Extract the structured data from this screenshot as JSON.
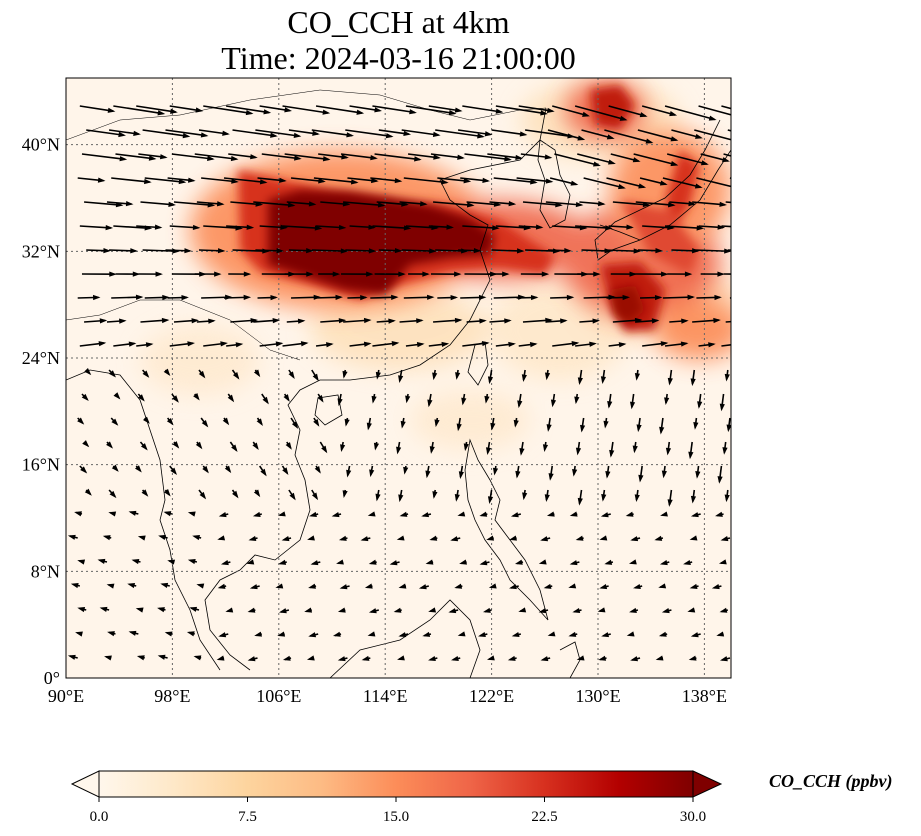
{
  "title_line1": "CO_CCH at 4km",
  "title_line2": "Time: 2024-03-16 21:00:00",
  "map": {
    "lon_range": [
      90,
      140
    ],
    "lat_range": [
      0,
      45
    ],
    "lon_ticks": [
      90,
      98,
      106,
      114,
      122,
      130,
      138
    ],
    "lat_ticks": [
      0,
      8,
      16,
      24,
      32,
      40
    ],
    "lon_tick_labels": [
      "90°E",
      "98°E",
      "106°E",
      "114°E",
      "122°E",
      "130°E",
      "138°E"
    ],
    "lat_tick_labels": [
      "0°",
      "8°N",
      "16°N",
      "24°N",
      "32°N",
      "40°N"
    ],
    "gridlines": "dotted",
    "field_cmap": "OrRd",
    "plumes": [
      {
        "region": "central China",
        "lon": [
          106,
          118
        ],
        "lat": [
          30,
          36
        ],
        "level_ppbv": 30
      },
      {
        "region": "east China coast",
        "lon": [
          118,
          126
        ],
        "lat": [
          31,
          35
        ],
        "level_ppbv": 24
      },
      {
        "region": "south of Japan",
        "lon": [
          130,
          135
        ],
        "lat": [
          26,
          30
        ],
        "level_ppbv": 26
      },
      {
        "region": "Korea / Japan",
        "lon": [
          130,
          140
        ],
        "lat": [
          33,
          38
        ],
        "level_ppbv": 20
      },
      {
        "region": "NE China",
        "lon": [
          129,
          134
        ],
        "lat": [
          40,
          44
        ],
        "level_ppbv": 22
      }
    ]
  },
  "colorbar": {
    "min": 0.0,
    "max": 30.0,
    "extend": "both",
    "ticks": [
      "0.0",
      "7.5",
      "15.0",
      "22.5",
      "30.0"
    ],
    "label": "CO_CCH (ppbv)",
    "colors": [
      "#fff7ec",
      "#fee8c8",
      "#fdd49e",
      "#fdbb84",
      "#fc8d59",
      "#ef6548",
      "#d7301f",
      "#b30000",
      "#7f0000"
    ]
  }
}
